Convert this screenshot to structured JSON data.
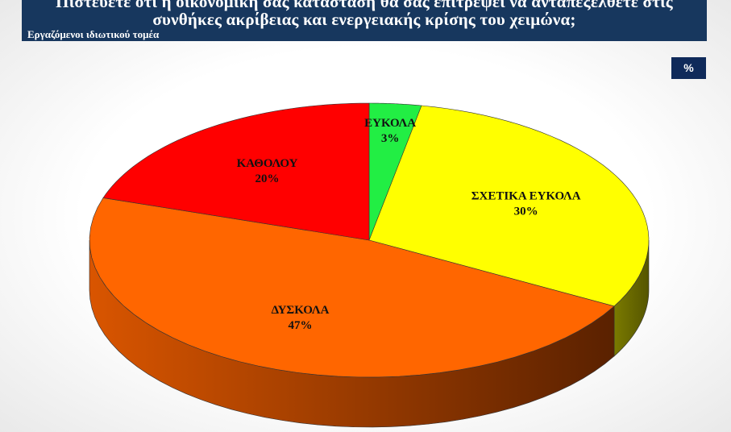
{
  "chart_data": {
    "type": "pie",
    "title": "Πιστεύετε ότι η οικονομική σας κατάσταση θα σας επιτρέψει να ανταπεξέλθετε στις συνθήκες ακρίβειας και ενεργειακής κρίσης του χειμώνα;",
    "subtitle": "Εργαζόμενοι ιδιωτικού τομέα",
    "unit_badge": "%",
    "categories": [
      "ΕΥΚΟΛΑ",
      "ΣΧΕΤΙΚΑ ΕΥΚΟΛΑ",
      "ΔΥΣΚΟΛΑ",
      "ΚΑΘΟΛΟΥ"
    ],
    "values": [
      3,
      30,
      47,
      20
    ],
    "value_labels": [
      "3%",
      "30%",
      "47%",
      "20%"
    ],
    "colors": [
      "#22ee44",
      "#ffff00",
      "#ff6600",
      "#ff0000"
    ]
  }
}
